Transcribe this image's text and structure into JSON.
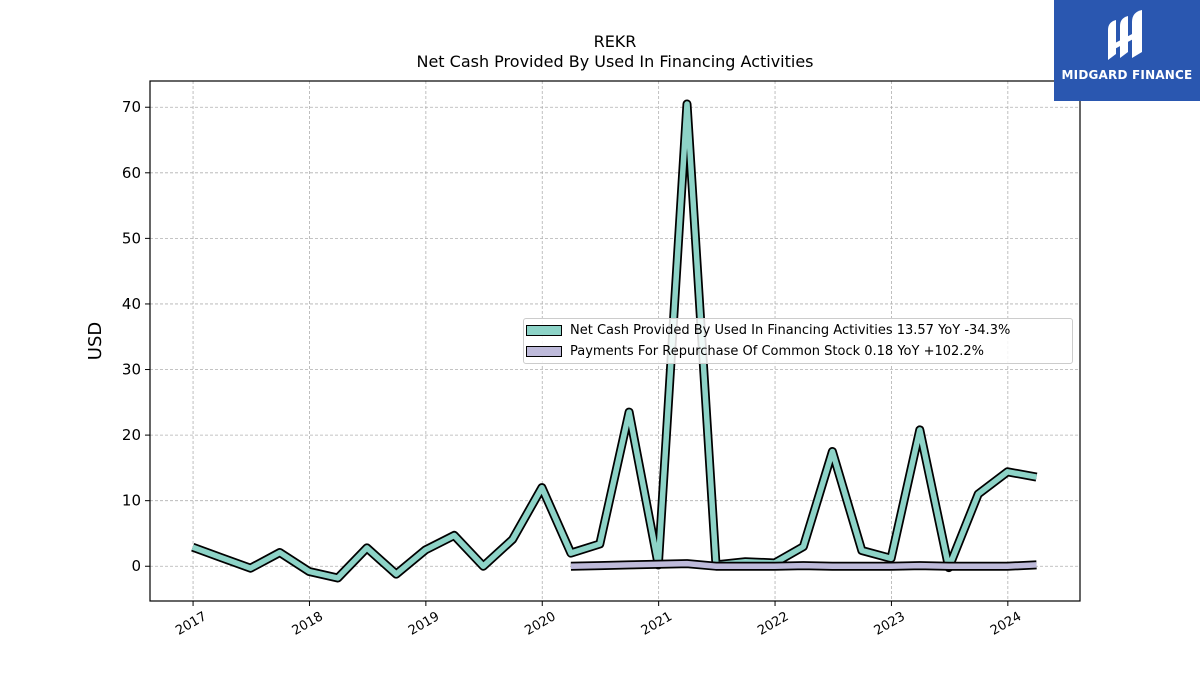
{
  "title": "REKR",
  "subtitle": "Net Cash Provided By Used In Financing Activities",
  "logo_text": "MIDGARD FINANCE",
  "legend": [
    {
      "label": "Net Cash Provided By Used In Financing Activities  13.57 YoY -34.3%"
    },
    {
      "label": "Payments For Repurchase Of Common Stock  0.18 YoY +102.2%"
    }
  ],
  "colors": {
    "series1": "#8dd3c7",
    "series2": "#bebada",
    "outline": "#000000",
    "grid": "#b0b0b0",
    "logo_bg": "#2a57b0"
  },
  "chart_data": {
    "type": "line",
    "title": "REKR",
    "subtitle": "Net Cash Provided By Used In Financing Activities",
    "ylabel": "USD",
    "xlabel": "",
    "ylim": [
      -5.3,
      74
    ],
    "xlim": [
      2016.63,
      2024.62
    ],
    "yticks": [
      0,
      10,
      20,
      30,
      40,
      50,
      60,
      70
    ],
    "xticks": [
      "2017",
      "2018",
      "2019",
      "2020",
      "2021",
      "2022",
      "2023",
      "2024"
    ],
    "grid": true,
    "legend_position": "center-right",
    "series": [
      {
        "name": "Net Cash Provided By Used In Financing Activities",
        "x": [
          "2016-12-31",
          "2017-03-31",
          "2017-06-30",
          "2017-09-30",
          "2017-12-31",
          "2018-03-31",
          "2018-06-30",
          "2018-09-30",
          "2018-12-31",
          "2019-03-31",
          "2019-06-30",
          "2019-09-30",
          "2019-12-31",
          "2020-03-31",
          "2020-06-30",
          "2020-09-30",
          "2020-12-31",
          "2021-03-31",
          "2021-06-30",
          "2021-09-30",
          "2021-12-31",
          "2022-03-31",
          "2022-06-30",
          "2022-09-30",
          "2022-12-31",
          "2023-03-31",
          "2023-06-30",
          "2023-09-30",
          "2023-12-31",
          "2024-03-31"
        ],
        "values": [
          2.9,
          1.3,
          -0.3,
          2.1,
          -0.8,
          -1.8,
          2.8,
          -1.2,
          2.5,
          4.7,
          0.0,
          4.1,
          12.0,
          2.0,
          3.4,
          23.5,
          0.2,
          70.5,
          0.2,
          0.7,
          0.5,
          3.0,
          17.5,
          2.4,
          1.2,
          20.8,
          -0.2,
          11.0,
          14.4,
          13.6
        ]
      },
      {
        "name": "Payments For Repurchase Of Common Stock",
        "x": [
          "2020-03-31",
          "2020-06-30",
          "2020-09-30",
          "2020-12-31",
          "2021-03-31",
          "2021-06-30",
          "2021-09-30",
          "2021-12-31",
          "2022-03-31",
          "2022-06-30",
          "2022-09-30",
          "2022-12-31",
          "2023-03-31",
          "2023-06-30",
          "2023-09-30",
          "2023-12-31",
          "2024-03-31"
        ],
        "values": [
          0.0,
          0.1,
          0.2,
          0.3,
          0.4,
          0.0,
          0.0,
          0.0,
          0.1,
          0.0,
          0.0,
          0.0,
          0.1,
          0.0,
          0.0,
          0.0,
          0.2
        ]
      }
    ]
  }
}
